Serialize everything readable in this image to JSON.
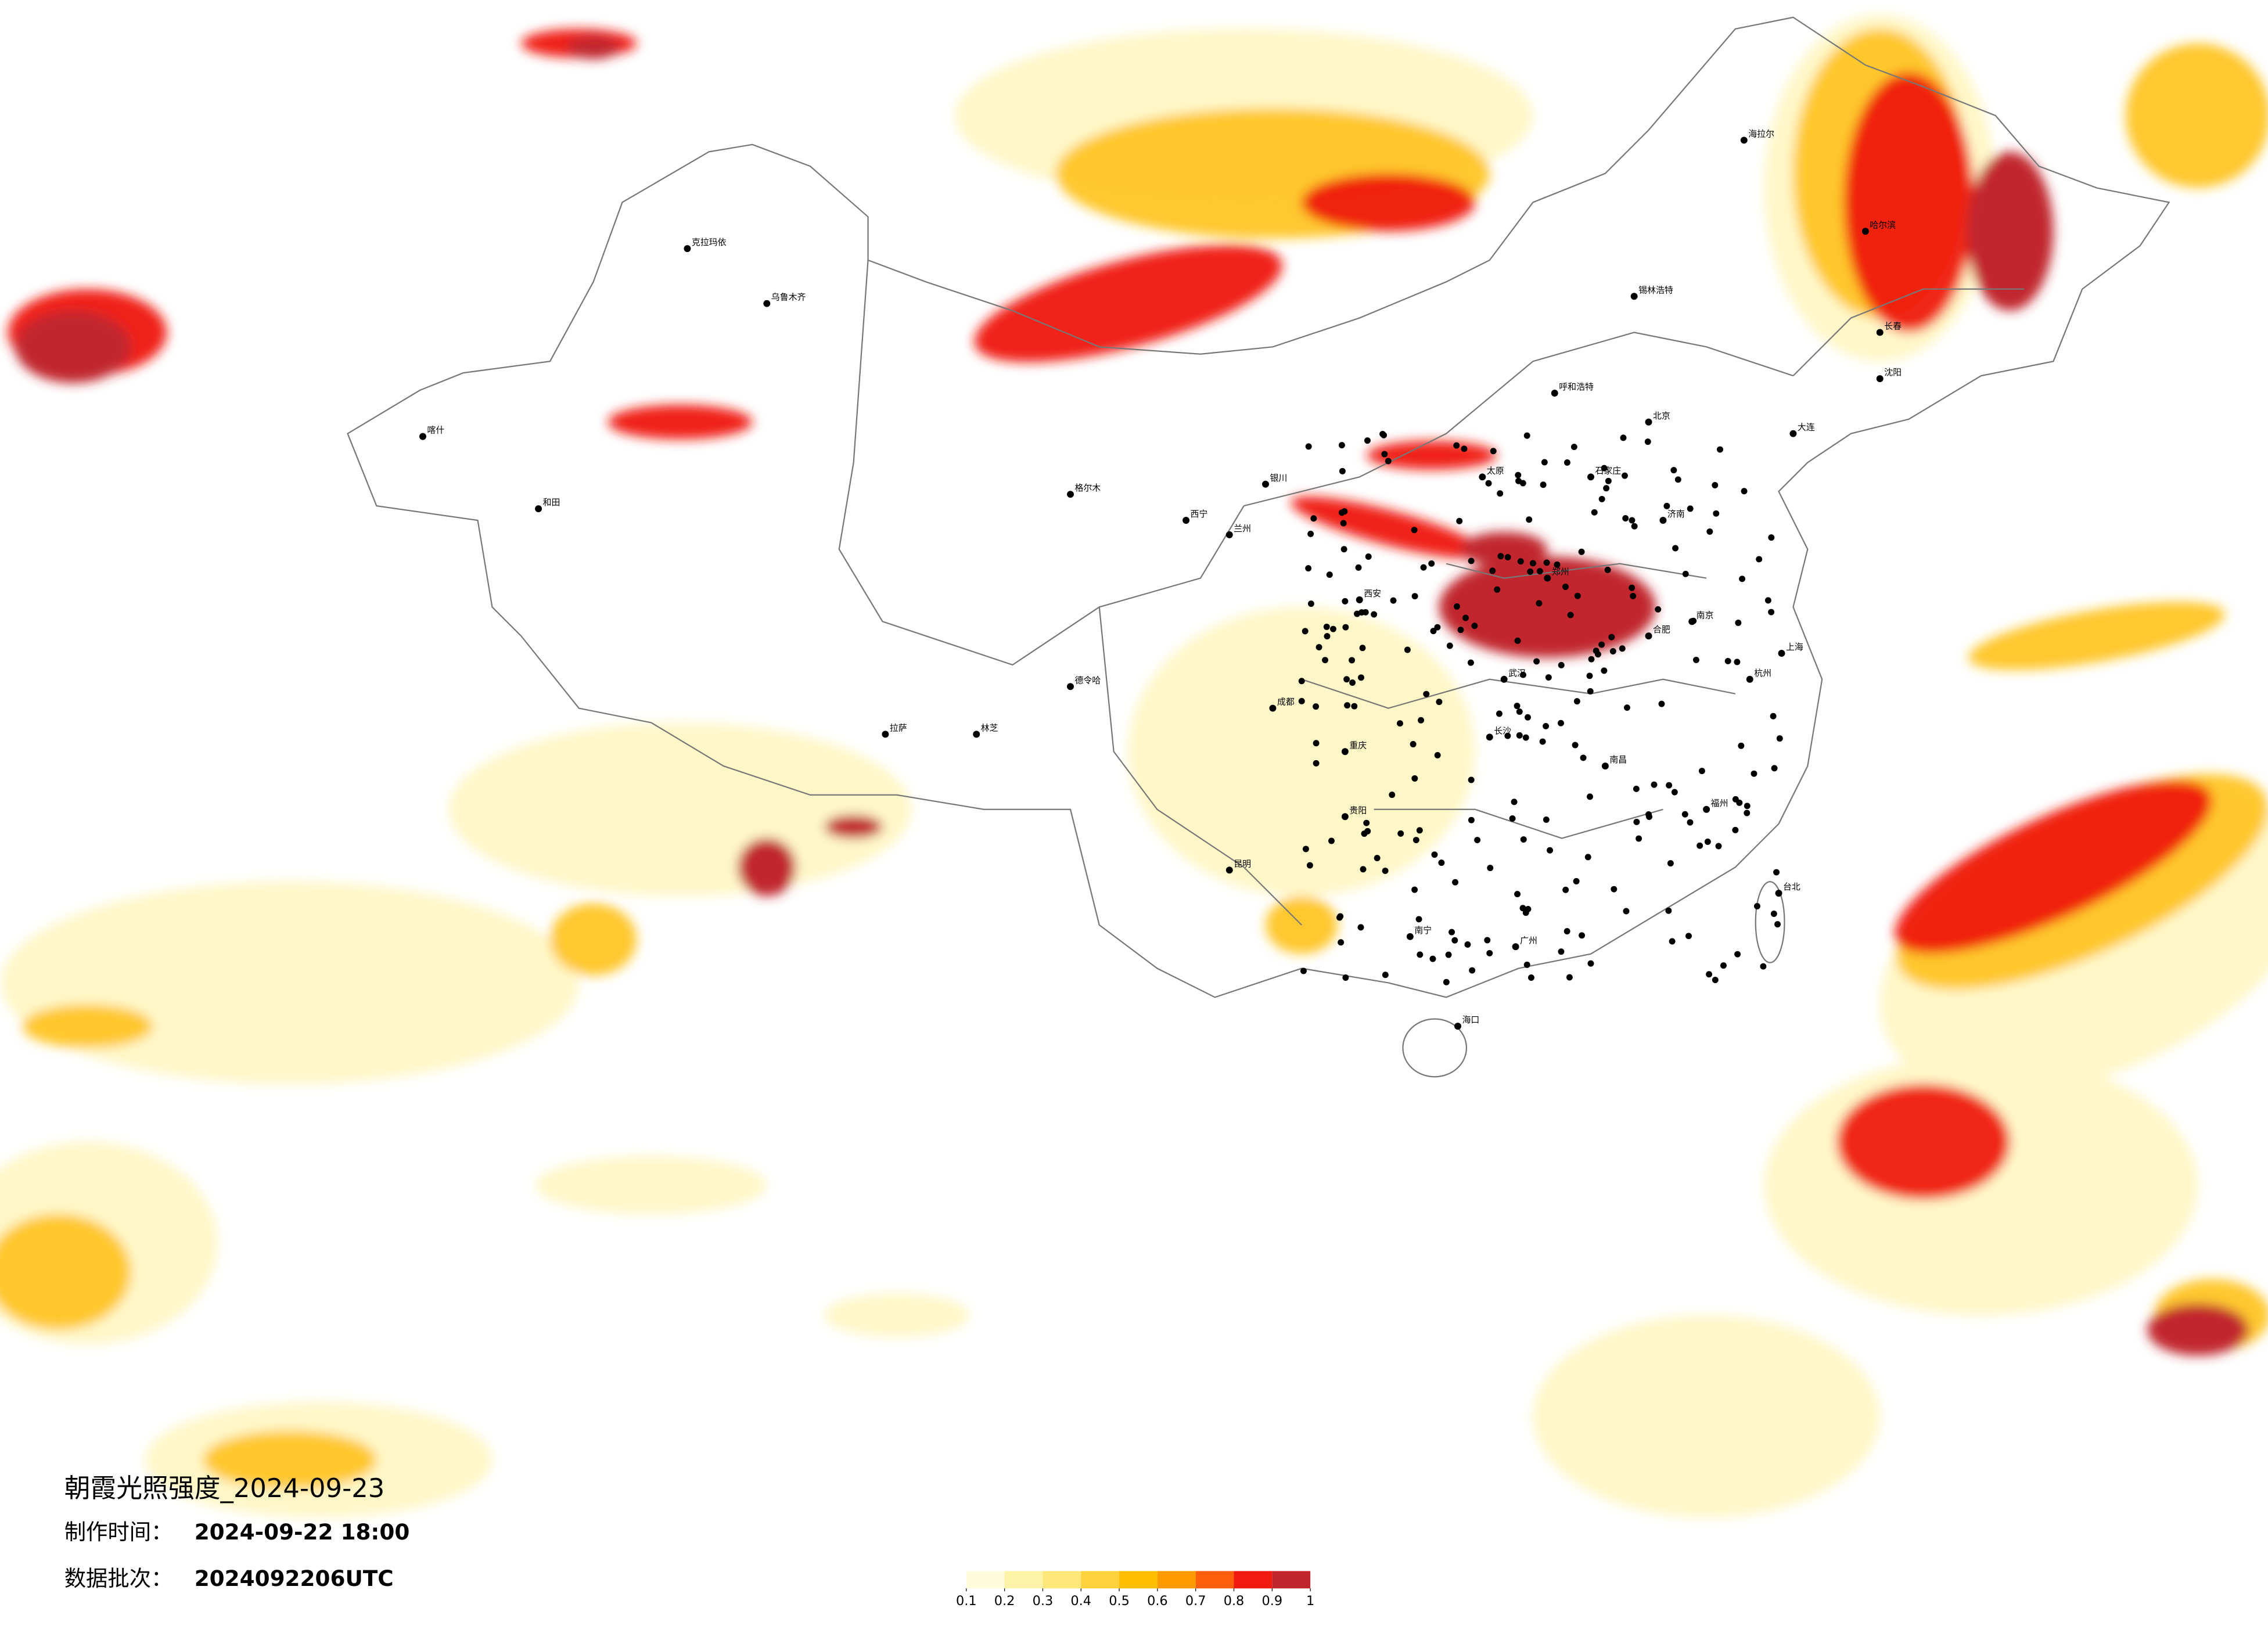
{
  "header": {
    "title": "朝霞光照强度_2024-09-23",
    "made_label": "制作时间：",
    "made_time": "2024-09-22 18:00",
    "batch_label": "数据批次：",
    "batch": "2024092206UTC"
  },
  "legend": {
    "colors": [
      "#fffbdc",
      "#fff3a8",
      "#ffe77a",
      "#ffd23c",
      "#ffbd00",
      "#ff9a00",
      "#ff5e0a",
      "#f01a10",
      "#c1262d"
    ],
    "ticks": [
      0.1,
      0.2,
      0.3,
      0.4,
      0.5,
      0.6,
      0.7,
      0.8,
      0.9,
      1
    ]
  },
  "cities": [
    "北京",
    "上海",
    "广州",
    "郑州",
    "武汉",
    "长沙",
    "南京",
    "杭州",
    "福州",
    "南宁",
    "昆明",
    "贵阳",
    "成都",
    "重庆",
    "西安",
    "兰州",
    "西宁",
    "银川",
    "呼和浩特",
    "太原",
    "石家庄",
    "济南",
    "合肥",
    "南昌",
    "海口",
    "哈尔滨",
    "长春",
    "沈阳",
    "乌鲁木齐",
    "拉萨",
    "台北",
    "克拉玛依",
    "和田",
    "喀什",
    "海拉尔",
    "锡林浩特",
    "格尔木",
    "德令哈",
    "林芝",
    "大连"
  ]
}
